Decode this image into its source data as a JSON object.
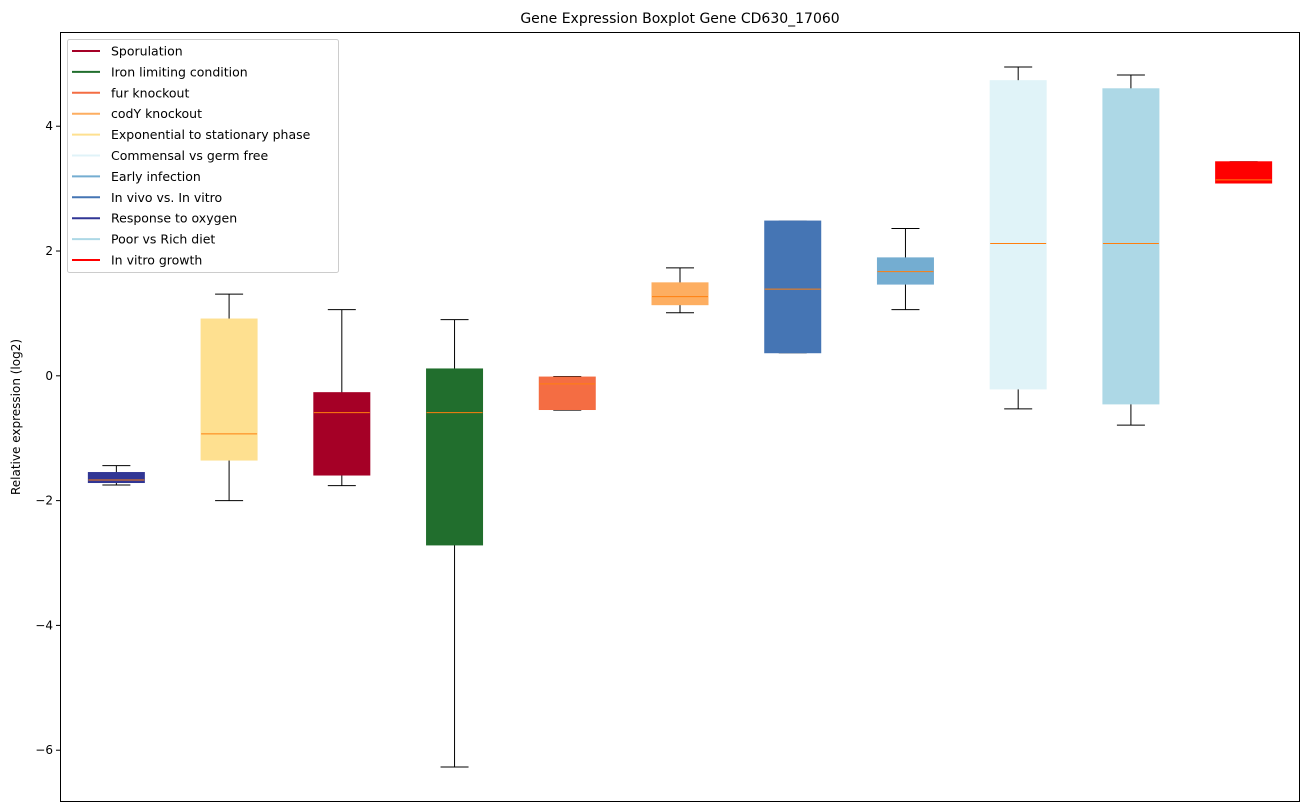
{
  "chart_data": {
    "type": "boxplot",
    "title": "Gene Expression Boxplot Gene CD630_17060",
    "xlabel": "",
    "ylabel": "Relative expression (log2)",
    "ylim": [
      -6.83,
      5.51
    ],
    "yticks": [
      4,
      2,
      0,
      -2,
      -4,
      -6
    ],
    "ytick_labels": [
      "4",
      "2",
      "0",
      "−2",
      "−4",
      "−6"
    ],
    "grid": false,
    "legend_position": "top-left",
    "median_color": "#ff7f0e",
    "legend": [
      {
        "label": "Sporulation",
        "color": "#a50026"
      },
      {
        "label": "Iron limiting condition",
        "color": "#216e2d"
      },
      {
        "label": "fur knockout",
        "color": "#f46d43"
      },
      {
        "label": "codY knockout",
        "color": "#fdae61"
      },
      {
        "label": "Exponential to stationary phase",
        "color": "#fee090"
      },
      {
        "label": "Commensal vs germ free",
        "color": "#e0f3f8"
      },
      {
        "label": "Early infection",
        "color": "#74add1"
      },
      {
        "label": "In vivo vs. In vitro",
        "color": "#4575b4"
      },
      {
        "label": "Response to oxygen",
        "color": "#313695"
      },
      {
        "label": "Poor vs Rich diet",
        "color": "#add8e6"
      },
      {
        "label": "In vitro growth",
        "color": "#ff0000"
      }
    ],
    "boxes": [
      {
        "name": "Response to oxygen",
        "color": "#313695",
        "whislo": -1.75,
        "q1": -1.71,
        "med": -1.67,
        "q3": -1.55,
        "whishi": -1.44
      },
      {
        "name": "Exponential to stationary phase",
        "color": "#fee090",
        "whislo": -2.0,
        "q1": -1.35,
        "med": -0.93,
        "q3": 0.91,
        "whishi": 1.31
      },
      {
        "name": "Sporulation",
        "color": "#a50026",
        "whislo": -1.76,
        "q1": -1.59,
        "med": -0.59,
        "q3": -0.27,
        "whishi": 1.06
      },
      {
        "name": "Iron limiting condition",
        "color": "#216e2d",
        "whislo": -6.27,
        "q1": -2.71,
        "med": -0.59,
        "q3": 0.11,
        "whishi": 0.9
      },
      {
        "name": "fur knockout",
        "color": "#f46d43",
        "whislo": -0.55,
        "q1": -0.54,
        "med": -0.13,
        "q3": -0.02,
        "whishi": -0.01
      },
      {
        "name": "codY knockout",
        "color": "#fdae61",
        "whislo": 1.01,
        "q1": 1.14,
        "med": 1.27,
        "q3": 1.49,
        "whishi": 1.73
      },
      {
        "name": "In vivo vs. In vitro",
        "color": "#4575b4",
        "whislo": 0.37,
        "q1": 0.37,
        "med": 1.39,
        "q3": 2.48,
        "whishi": 2.48
      },
      {
        "name": "Early infection",
        "color": "#74add1",
        "whislo": 1.06,
        "q1": 1.47,
        "med": 1.67,
        "q3": 1.89,
        "whishi": 2.36
      },
      {
        "name": "Commensal vs germ free",
        "color": "#e0f3f8",
        "whislo": -0.53,
        "q1": -0.21,
        "med": 2.12,
        "q3": 4.73,
        "whishi": 4.95
      },
      {
        "name": "Poor vs Rich diet",
        "color": "#add8e6",
        "whislo": -0.79,
        "q1": -0.45,
        "med": 2.12,
        "q3": 4.6,
        "whishi": 4.82
      },
      {
        "name": "In vitro growth",
        "color": "#ff0000",
        "whislo": 3.09,
        "q1": 3.09,
        "med": 3.14,
        "q3": 3.43,
        "whishi": 3.43
      }
    ]
  }
}
